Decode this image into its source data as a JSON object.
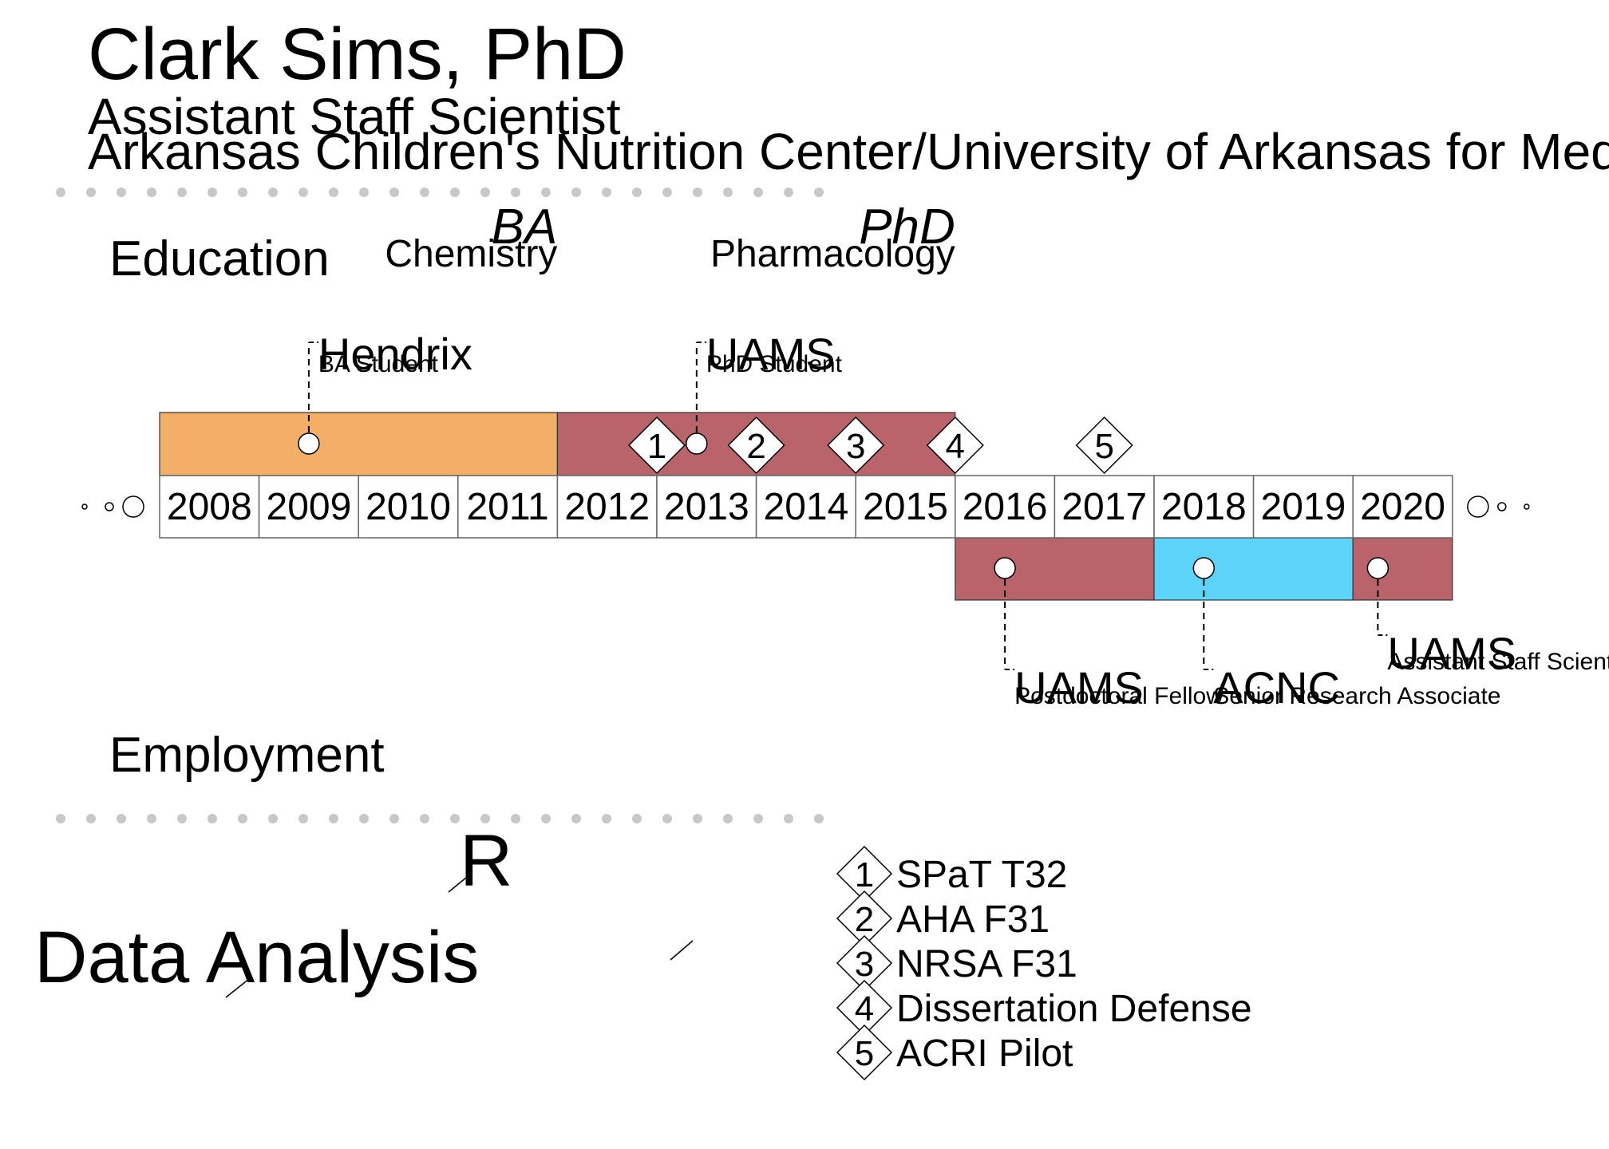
{
  "header": {
    "name": "Clark Sims, PhD",
    "title": "Assistant Staff Scientist",
    "affiliation": "Arkansas Children's Nutrition Center/University of Arkansas for Medical Sciences"
  },
  "sections": {
    "education": "Education",
    "employment": "Employment"
  },
  "timeline": {
    "years": [
      "2008",
      "2009",
      "2010",
      "2011",
      "2012",
      "2013",
      "2014",
      "2015",
      "2016",
      "2017",
      "2018",
      "2019",
      "2020"
    ]
  },
  "degrees": [
    {
      "degree": "BA",
      "field": "Chemistry"
    },
    {
      "degree": "PhD",
      "field": "Pharmacology"
    }
  ],
  "education_items": [
    {
      "institution": "Hendrix",
      "role": "BA Student",
      "start": 2007.5,
      "end": 2011.5,
      "marker": 2009.0,
      "color": "#F4AF66"
    },
    {
      "institution": "UAMS",
      "role": "PhD Student",
      "start": 2011.5,
      "end": 2015.5,
      "marker": 2012.9,
      "color": "#B9646A"
    }
  ],
  "employment_items": [
    {
      "institution": "UAMS",
      "role": "Postdoctoral Fellow",
      "start": 2015.5,
      "end": 2017.5,
      "marker": 2016.0,
      "color": "#B9646A"
    },
    {
      "institution": "ACNC",
      "role": "Senior Research Associate",
      "start": 2017.5,
      "end": 2019.5,
      "marker": 2018.0,
      "color": "#5CD4FA"
    },
    {
      "institution": "UAMS",
      "role": "Assistant Staff Scientist",
      "start": 2019.5,
      "end": 2020.5,
      "marker": 2019.75,
      "color": "#B9646A"
    }
  ],
  "milestones": [
    {
      "id": "1",
      "year": 2012.5,
      "label": "SPaT T32"
    },
    {
      "id": "2",
      "year": 2013.5,
      "label": "AHA F31"
    },
    {
      "id": "3",
      "year": 2014.5,
      "label": "NRSA F31"
    },
    {
      "id": "4",
      "year": 2015.5,
      "label": "Dissertation Defense"
    },
    {
      "id": "5",
      "year": 2017.0,
      "label": "ACRI Pilot"
    }
  ],
  "skills": {
    "primary": "Data Analysis",
    "secondary": "R"
  }
}
